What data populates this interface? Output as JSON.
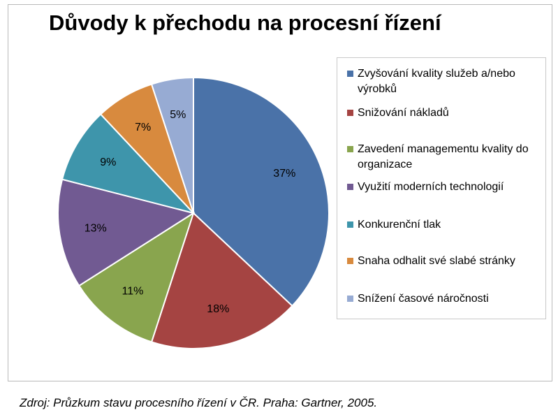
{
  "chart_data": {
    "type": "pie",
    "title": "Důvody k přechodu na procesní řízení",
    "legend_position": "right",
    "slices": [
      {
        "label": "Zvyšování kvality služeb a/nebo výrobků",
        "value": 37,
        "value_label": "37%",
        "color": "#4a72a8"
      },
      {
        "label": "Snižování nákladů",
        "value": 18,
        "value_label": "18%",
        "color": "#a54442"
      },
      {
        "label": "Zavedení managementu kvality do organizace",
        "value": 11,
        "value_label": "11%",
        "color": "#89a54e"
      },
      {
        "label": "Využití moderních technologií",
        "value": 13,
        "value_label": "13%",
        "color": "#715a92"
      },
      {
        "label": "Konkurenční tlak",
        "value": 9,
        "value_label": "9%",
        "color": "#3e95ab"
      },
      {
        "label": "Snaha odhalit své slabé stránky",
        "value": 7,
        "value_label": "7%",
        "color": "#d88a3e"
      },
      {
        "label": "Snížení časové náročnosti",
        "value": 5,
        "value_label": "5%",
        "color": "#97abd3"
      }
    ]
  },
  "source_note": "Zdroj: Průzkum stavu procesního řízení v ČR. Praha: Gartner, 2005."
}
